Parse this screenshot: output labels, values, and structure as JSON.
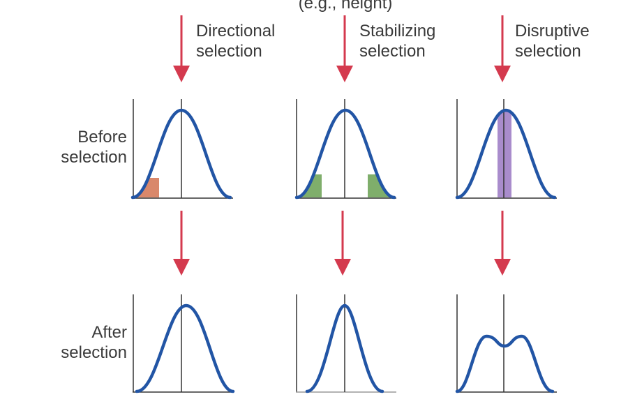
{
  "header": {
    "caption": "(e.g., height)"
  },
  "columns": [
    {
      "line1": "Directional",
      "line2": "selection"
    },
    {
      "line1": "Stabilizing",
      "line2": "selection"
    },
    {
      "line1": "Disruptive",
      "line2": "selection"
    }
  ],
  "rows": [
    {
      "line1": "Before",
      "line2": "selection"
    },
    {
      "line1": "After",
      "line2": "selection"
    }
  ],
  "colors": {
    "curve": "#2255a5",
    "arrow": "#d43a4e",
    "axis": "#333333",
    "directional_shade": "#d9886b",
    "stabilizing_shade": "#7fae6b",
    "disruptive_shade": "#a98ccc"
  }
}
